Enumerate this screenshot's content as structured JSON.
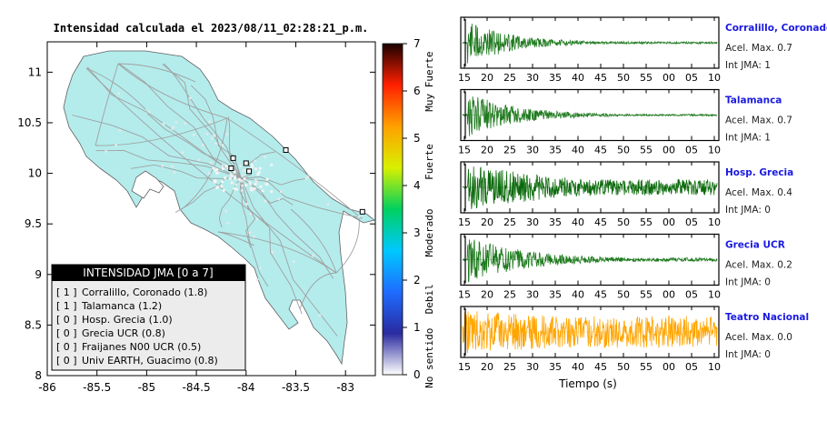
{
  "map_title": "Intensidad calculada el 2023/08/11_02:28:21_p.m.",
  "map": {
    "x_ticks": [
      "-86",
      "-85.5",
      "-85",
      "-84.5",
      "-84",
      "-83.5",
      "-83"
    ],
    "y_ticks": [
      "11",
      "10.5",
      "10",
      "9.5",
      "9",
      "8.5",
      "8"
    ],
    "xlim": [
      -86,
      -82.7
    ],
    "ylim": [
      8,
      11.3
    ],
    "land_color": "#b4ecec",
    "road_color": "#a0a0a0",
    "stations": [
      {
        "lon": -84.15,
        "lat": 10.05
      },
      {
        "lon": -84.0,
        "lat": 10.1
      },
      {
        "lon": -83.97,
        "lat": 10.02
      },
      {
        "lon": -84.13,
        "lat": 10.15
      },
      {
        "lon": -83.6,
        "lat": 10.23
      },
      {
        "lon": -82.83,
        "lat": 9.62
      }
    ]
  },
  "legend_box": {
    "header": "INTENSIDAD JMA [0 a 7]",
    "entries": [
      {
        "level": "[ 1 ]",
        "name": "Corralillo, Coronado (1.8)"
      },
      {
        "level": "[ 1 ]",
        "name": "Talamanca (1.2)"
      },
      {
        "level": "[ 0 ]",
        "name": "Hosp. Grecia (1.0)"
      },
      {
        "level": "[ 0 ]",
        "name": "Grecia UCR (0.8)"
      },
      {
        "level": "[ 0 ]",
        "name": "Fraijanes N00 UCR (0.5)"
      },
      {
        "level": "[ 0 ]",
        "name": "Univ EARTH, Guacimo (0.8)"
      }
    ]
  },
  "colorbar": {
    "ticks": [
      "0",
      "1",
      "2",
      "3",
      "4",
      "5",
      "6",
      "7"
    ],
    "labels": [
      "No sentido",
      "Debil",
      "Moderado",
      "Fuerte",
      "Muy Fuerte"
    ],
    "colors": [
      "#ffffff",
      "#2a2aa0",
      "#1e6cff",
      "#00c8ff",
      "#00d060",
      "#d8f000",
      "#ffa000",
      "#ff2000",
      "#1a0000"
    ]
  },
  "waveforms": {
    "x_ticks": [
      "15",
      "20",
      "25",
      "30",
      "35",
      "40",
      "45",
      "50",
      "55",
      "00",
      "05",
      "10"
    ],
    "x_tick_labels_bottom": [
      "15",
      "20",
      "25",
      "30",
      "35",
      "40",
      "45",
      "50",
      "55",
      "00",
      "05",
      "10"
    ],
    "xlabel": "Tiempo (s)",
    "panels": [
      {
        "station": "Corralillo, Coronado",
        "accel": "Acel. Max. 0.7",
        "int": "Int JMA: 1",
        "color": "#1e7a1e",
        "amplitude": 0.7,
        "onset": 0.02,
        "decay": 0.18,
        "noise": 0.05
      },
      {
        "station": "Talamanca",
        "accel": "Acel. Max. 0.7",
        "int": "Int JMA: 1",
        "color": "#1e7a1e",
        "amplitude": 0.7,
        "onset": 0.02,
        "decay": 0.2,
        "noise": 0.04
      },
      {
        "station": "Hosp. Grecia",
        "accel": "Acel. Max. 0.4",
        "int": "Int JMA: 0",
        "color": "#0b6a0b",
        "amplitude": 0.4,
        "onset": 0.02,
        "decay": 0.5,
        "noise": 0.35
      },
      {
        "station": "Grecia UCR",
        "accel": "Acel. Max. 0.2",
        "int": "Int JMA: 0",
        "color": "#1e7a1e",
        "amplitude": 0.2,
        "onset": 0.02,
        "decay": 0.25,
        "noise": 0.08
      },
      {
        "station": "Teatro Nacional",
        "accel": "Acel. Max. 0.0",
        "int": "Int JMA: 0",
        "color": "#ffa500",
        "amplitude": 0.0,
        "onset": 0.0,
        "decay": 1.0,
        "noise": 0.7
      }
    ]
  },
  "chart_data": {
    "type": "line",
    "title": "Intensidad calculada el 2023/08/11_02:28:21_p.m.",
    "xlabel": "Tiempo (s)",
    "series": [
      {
        "name": "Corralillo, Coronado",
        "peak_accel": 0.7,
        "jma_intensity": 1
      },
      {
        "name": "Talamanca",
        "peak_accel": 0.7,
        "jma_intensity": 1
      },
      {
        "name": "Hosp. Grecia",
        "peak_accel": 0.4,
        "jma_intensity": 0
      },
      {
        "name": "Grecia UCR",
        "peak_accel": 0.2,
        "jma_intensity": 0
      },
      {
        "name": "Teatro Nacional",
        "peak_accel": 0.0,
        "jma_intensity": 0
      }
    ]
  }
}
